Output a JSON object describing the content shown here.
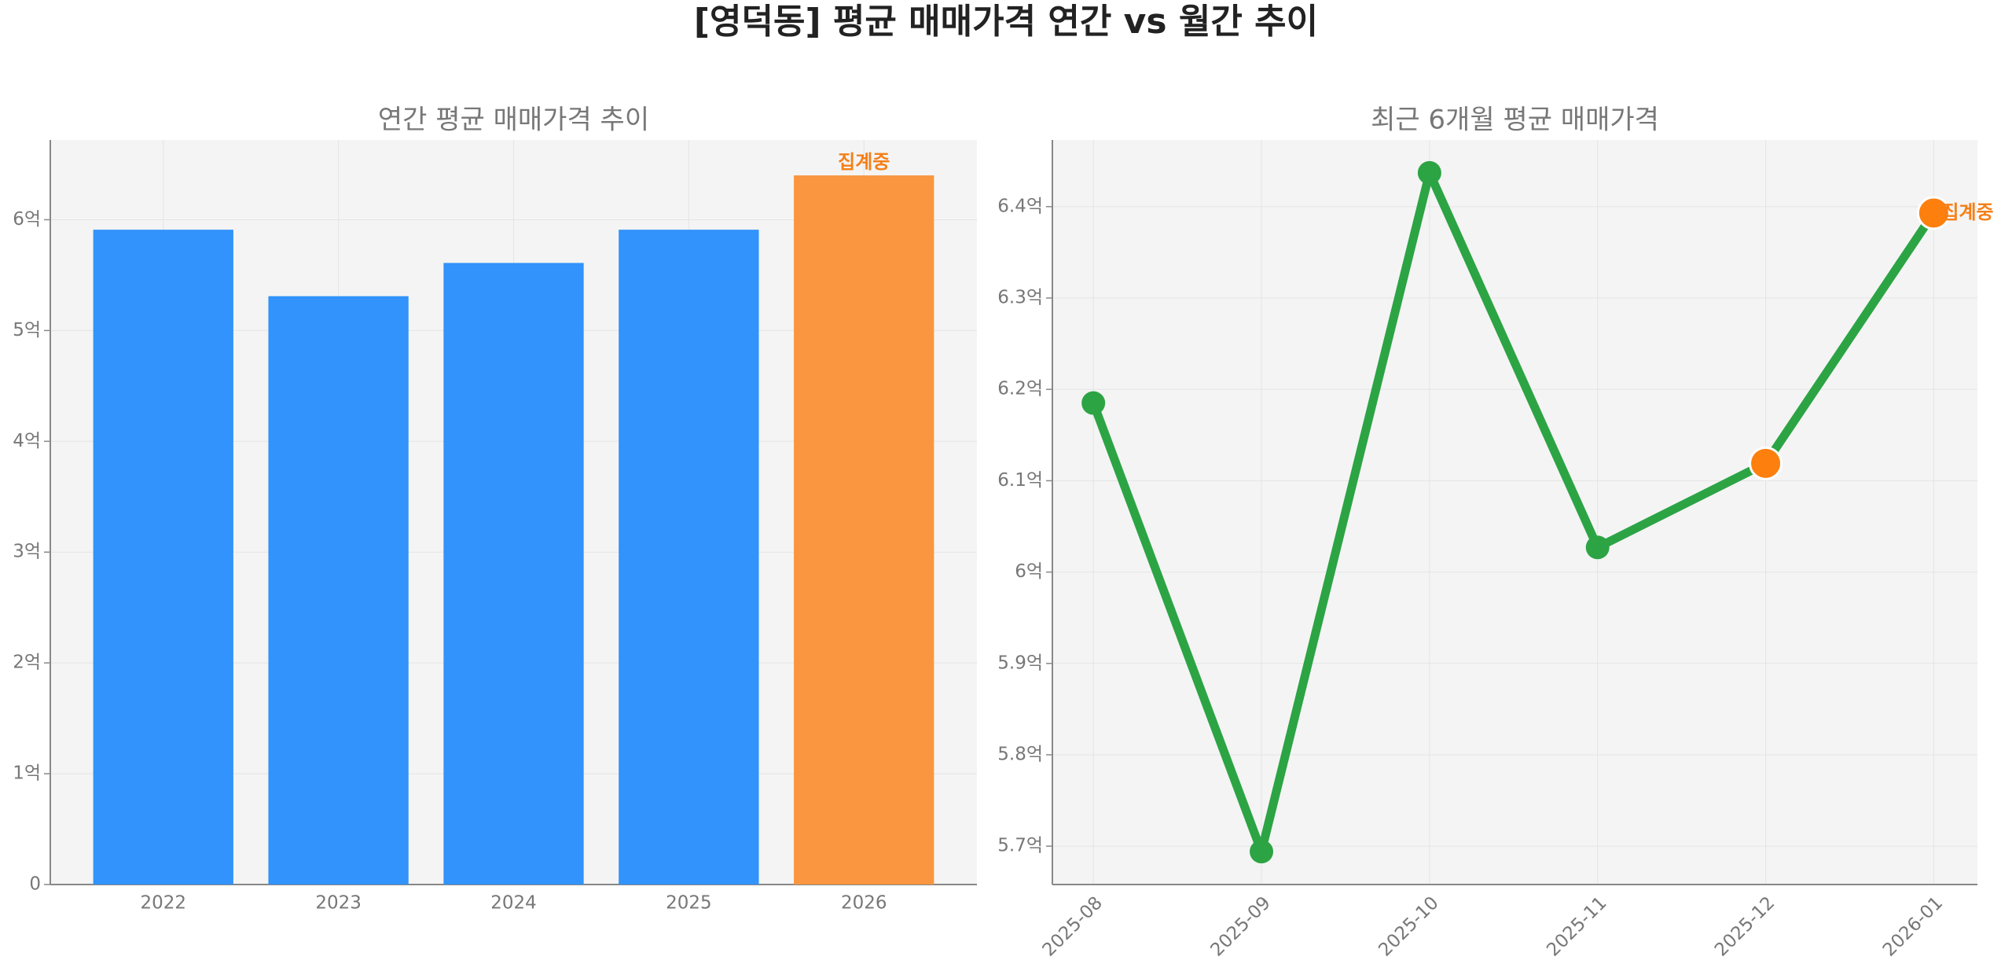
{
  "title": "[영덕동] 평균 매매가격 연간 vs 월간 추이",
  "chart_data": [
    {
      "type": "bar",
      "title": "연간 평균 매매가격 추이",
      "categories": [
        "2022",
        "2023",
        "2024",
        "2025",
        "2026"
      ],
      "values": [
        5.91,
        5.31,
        5.61,
        5.91,
        6.4
      ],
      "colors": [
        "#3193fb",
        "#3193fb",
        "#3193fb",
        "#3193fb",
        "#f9963f"
      ],
      "ylim": [
        0,
        6.72
      ],
      "yticks": [
        0,
        {
          "value": 1,
          "label": "1억"
        },
        {
          "value": 2,
          "label": "2억"
        },
        {
          "value": 3,
          "label": "3억"
        },
        {
          "value": 4,
          "label": "4억"
        },
        {
          "value": 5,
          "label": "5억"
        },
        {
          "value": 6,
          "label": "6억"
        }
      ],
      "grid": true,
      "annotations": [
        {
          "x": "2026",
          "text": "집계중",
          "color": "#f57f17"
        }
      ]
    },
    {
      "type": "line",
      "title": "최근 6개월 평균 매매가격",
      "categories": [
        "2025-08",
        "2025-09",
        "2025-10",
        "2025-11",
        "2025-12",
        "2026-01"
      ],
      "values": [
        6.185,
        5.694,
        6.437,
        6.027,
        6.119,
        6.393
      ],
      "color": "#2ca444",
      "marker_colors": [
        "#2ca444",
        "#2ca444",
        "#2ca444",
        "#2ca444",
        "#fd7f0e",
        "#fd7f0e"
      ],
      "ylim": [
        5.658,
        6.473
      ],
      "yticks": [
        {
          "value": 5.7,
          "label": "5.7억"
        },
        {
          "value": 5.8,
          "label": "5.8억"
        },
        {
          "value": 5.9,
          "label": "5.9억"
        },
        {
          "value": 6,
          "label": "6억"
        },
        {
          "value": 6.1,
          "label": "6.1억"
        },
        {
          "value": 6.2,
          "label": "6.2억"
        },
        {
          "value": 6.3,
          "label": "6.3억"
        },
        {
          "value": 6.4,
          "label": "6.4억"
        }
      ],
      "grid": true,
      "annotations": [
        {
          "x": "2026-01",
          "text": "집계중",
          "color": "#f57f17"
        }
      ]
    }
  ]
}
